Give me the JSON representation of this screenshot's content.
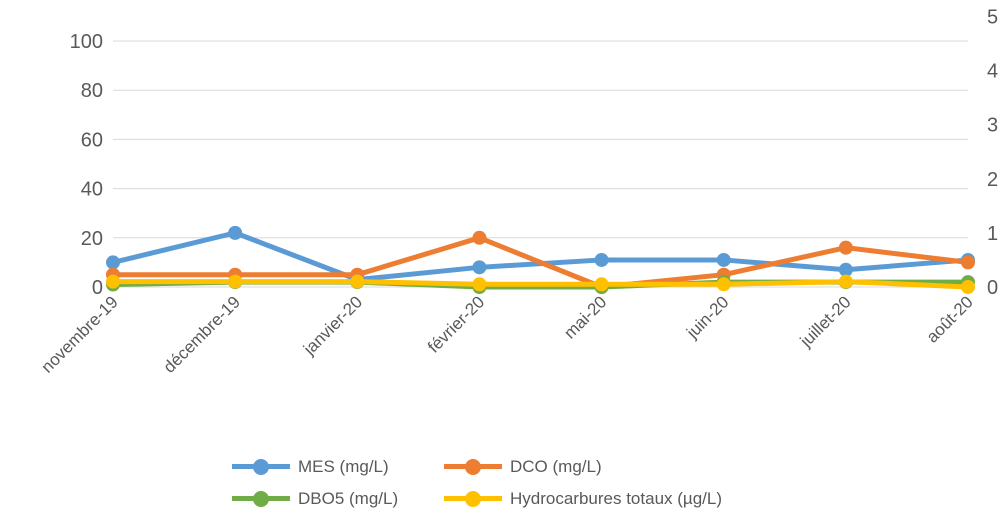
{
  "chart_data": {
    "type": "line",
    "categories": [
      "novembre-19",
      "décembre-19",
      "janvier-20",
      "février-20",
      "mai-20",
      "juin-20",
      "juillet-20",
      "août-20"
    ],
    "series": [
      {
        "name": "MES (mg/L)",
        "axis": "left",
        "color": "#5B9BD5",
        "values": [
          10,
          22,
          3,
          8,
          11,
          11,
          7,
          11
        ]
      },
      {
        "name": "DCO (mg/L)",
        "axis": "left",
        "color": "#ED7D31",
        "values": [
          5,
          5,
          5,
          20,
          0,
          5,
          16,
          10
        ]
      },
      {
        "name": "DBO5 (mg/L)",
        "axis": "left",
        "color": "#70AD47",
        "values": [
          1,
          2,
          2,
          0,
          0,
          2,
          2,
          2
        ]
      },
      {
        "name": "Hydrocarbures totaux (µg/L)",
        "axis": "right",
        "color": "#FFC000",
        "values": [
          0.1,
          0.1,
          0.1,
          0.05,
          0.05,
          0.05,
          0.1,
          0
        ]
      }
    ],
    "yticks_left": [
      "0",
      "20",
      "40",
      "60",
      "80",
      "100"
    ],
    "ylim_left": [
      0,
      100
    ],
    "yticks_right": [
      "0",
      "1",
      "2",
      "3",
      "4",
      "5"
    ],
    "ylim_right": [
      0,
      5
    ],
    "grid": true,
    "legend_position": "bottom"
  }
}
